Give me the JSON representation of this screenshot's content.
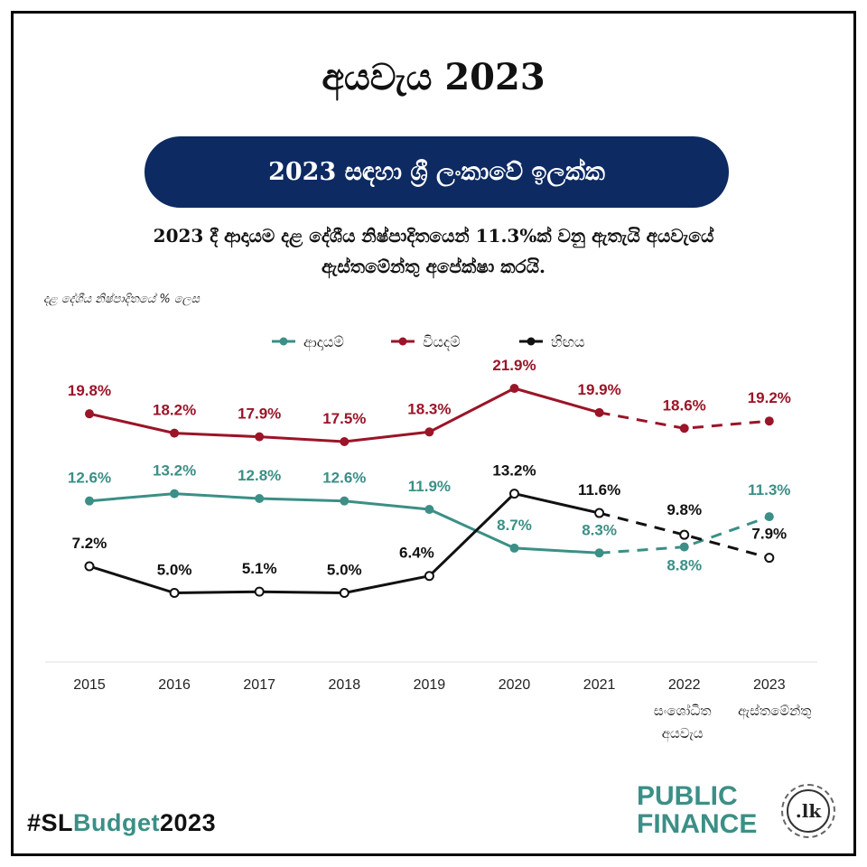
{
  "header": {
    "title": "අයවැය 2023",
    "banner": "2023 සඳහා ශ්‍රී ලංකාවේ ඉලක්ක",
    "subtitle_line1": "2023 දී ආදායම දළ දේශීය නිෂ්පාදිතයෙන් 11.3%ක් වනු ඇතැයි අයවැයේ",
    "subtitle_line2": "ඇස්තමේන්තු අපේක්ෂා කරයි.",
    "unit_label": "දළ දේශීය නිෂ්පාදිතයේ % ලෙස"
  },
  "chart_data": {
    "type": "line",
    "categories": [
      "2015",
      "2016",
      "2017",
      "2018",
      "2019",
      "2020",
      "2021",
      "2022",
      "2023"
    ],
    "category_notes": {
      "2022": [
        "සංශෝධිත",
        "අයවැය"
      ],
      "2023": [
        "ඇස්තමේන්තු"
      ]
    },
    "projected_from_index": 6,
    "value_suffix": "%",
    "ylim": [
      0,
      24
    ],
    "legend_position": "top-center",
    "grid": false,
    "series": [
      {
        "name": "ආදායම්",
        "color": "#3b8f86",
        "values": [
          12.6,
          13.2,
          12.8,
          12.6,
          11.9,
          8.7,
          8.3,
          8.8,
          11.3
        ]
      },
      {
        "name": "වියදම්",
        "color": "#9b1428",
        "values": [
          19.8,
          18.2,
          17.9,
          17.5,
          18.3,
          21.9,
          19.9,
          18.6,
          19.2
        ]
      },
      {
        "name": "හිඟය",
        "color": "#111111",
        "values": [
          7.2,
          5.0,
          5.1,
          5.0,
          6.4,
          13.2,
          11.6,
          9.8,
          7.9
        ]
      }
    ]
  },
  "footer": {
    "hashtag_prefix": "#SL",
    "hashtag_accent": "Budget",
    "hashtag_suffix": "2023",
    "logo_line1": "PUBLIC",
    "logo_line2": "FINANCE",
    "logo_seal": ".lk"
  }
}
